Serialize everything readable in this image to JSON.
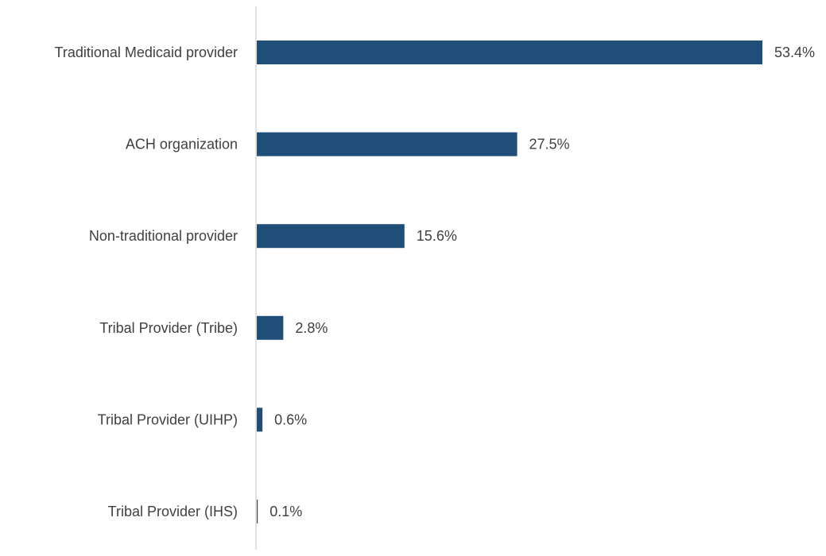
{
  "chart_data": {
    "type": "bar",
    "orientation": "horizontal",
    "categories": [
      "Traditional Medicaid provider",
      "ACH organization",
      "Non-traditional provider",
      "Tribal Provider (Tribe)",
      "Tribal Provider (UIHP)",
      "Tribal Provider (IHS)"
    ],
    "values": [
      53.4,
      27.5,
      15.6,
      2.8,
      0.6,
      0.1
    ],
    "value_labels": [
      "53.4%",
      "27.5%",
      "15.6%",
      "2.8%",
      "0.6%",
      "0.1%"
    ],
    "title": "",
    "xlabel": "",
    "ylabel": "",
    "xlim": [
      0,
      53.4
    ],
    "grid": false,
    "legend": "none",
    "colors": {
      "bar": "#1F4E79",
      "axis": "#D9D9D9",
      "text": "#404040"
    }
  }
}
